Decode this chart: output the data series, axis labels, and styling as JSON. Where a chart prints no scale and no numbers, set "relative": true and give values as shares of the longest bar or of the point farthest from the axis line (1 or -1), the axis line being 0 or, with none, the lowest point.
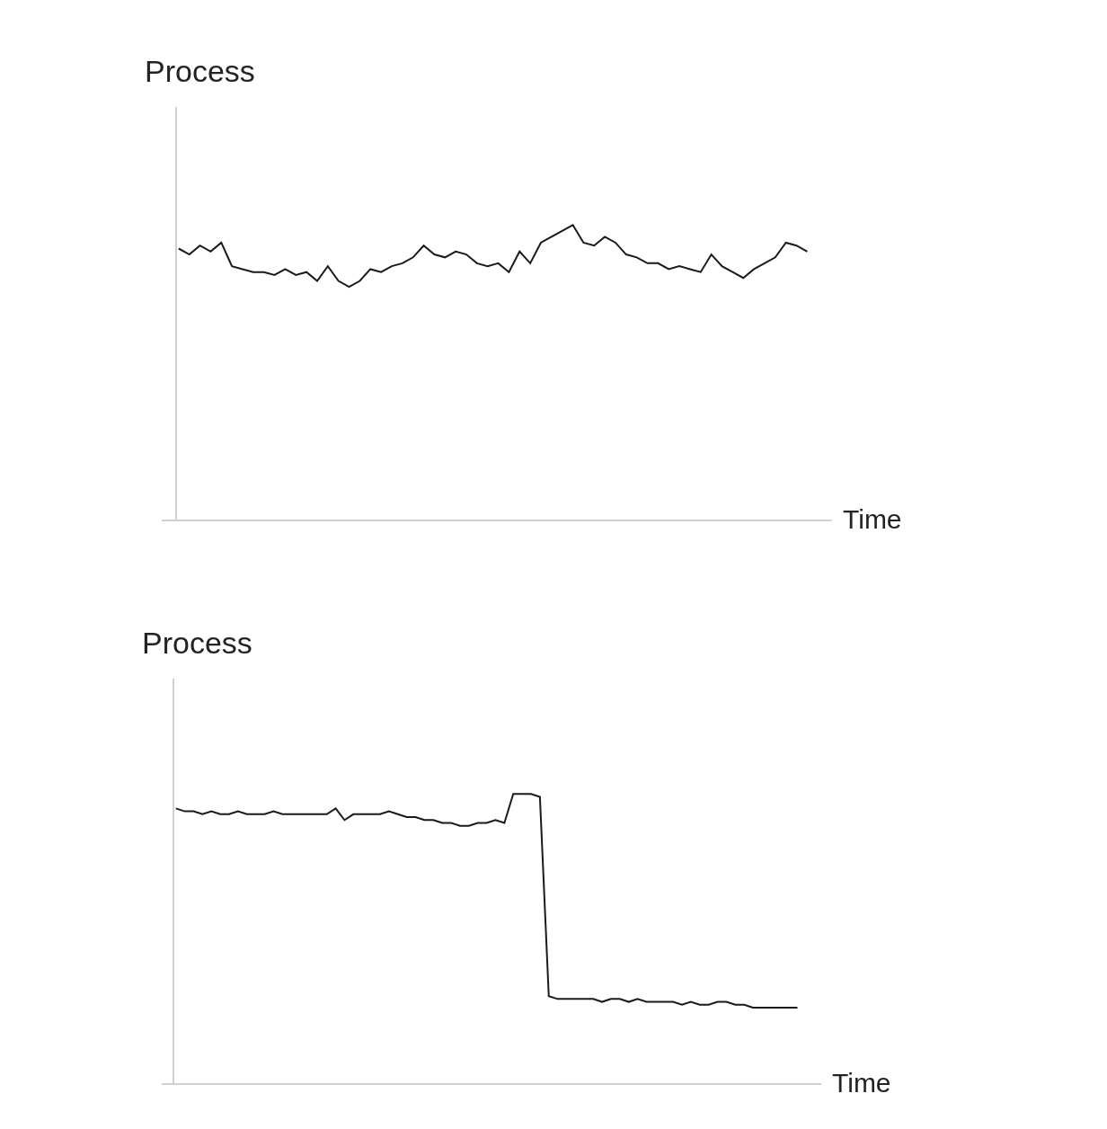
{
  "chart_data": [
    {
      "type": "line",
      "relative": true,
      "ylabel": "Process",
      "xlabel": "Time",
      "color": "#1a1a1a",
      "marker": "none",
      "line_style": "solid",
      "categories": [
        null,
        null,
        null,
        null,
        null,
        null,
        null,
        null,
        null,
        null,
        null,
        null,
        null,
        null,
        null,
        null,
        null,
        null,
        null,
        null,
        null,
        null,
        null,
        null,
        null,
        null,
        null,
        null,
        null,
        null,
        null,
        null,
        null,
        null,
        null,
        null,
        null,
        null,
        null,
        null,
        null,
        null,
        null,
        null,
        null,
        null,
        null,
        null,
        null,
        null,
        null,
        null,
        null,
        null,
        null,
        null,
        null,
        null,
        null,
        null
      ],
      "values": [
        0.92,
        0.9,
        0.93,
        0.91,
        0.94,
        0.86,
        0.85,
        0.84,
        0.84,
        0.83,
        0.85,
        0.83,
        0.84,
        0.81,
        0.86,
        0.81,
        0.79,
        0.81,
        0.85,
        0.84,
        0.86,
        0.87,
        0.89,
        0.93,
        0.9,
        0.89,
        0.91,
        0.9,
        0.87,
        0.86,
        0.87,
        0.84,
        0.91,
        0.87,
        0.94,
        0.96,
        0.98,
        1.0,
        0.94,
        0.93,
        0.96,
        0.94,
        0.9,
        0.89,
        0.87,
        0.87,
        0.85,
        0.86,
        0.85,
        0.84,
        0.9,
        0.86,
        0.84,
        0.82,
        0.85,
        0.87,
        0.89,
        0.94,
        0.93,
        0.91
      ]
    },
    {
      "type": "line",
      "relative": true,
      "ylabel": "Process",
      "xlabel": "Time",
      "color": "#1a1a1a",
      "marker": "none",
      "line_style": "solid",
      "categories": [
        null,
        null,
        null,
        null,
        null,
        null,
        null,
        null,
        null,
        null,
        null,
        null,
        null,
        null,
        null,
        null,
        null,
        null,
        null,
        null,
        null,
        null,
        null,
        null,
        null,
        null,
        null,
        null,
        null,
        null,
        null,
        null,
        null,
        null,
        null,
        null,
        null,
        null,
        null,
        null,
        null,
        null,
        null,
        null,
        null,
        null,
        null,
        null,
        null,
        null,
        null,
        null,
        null,
        null,
        null,
        null,
        null,
        null,
        null,
        null,
        null,
        null,
        null,
        null,
        null,
        null,
        null,
        null,
        null,
        null,
        null
      ],
      "values": [
        0.95,
        0.94,
        0.94,
        0.93,
        0.94,
        0.93,
        0.93,
        0.94,
        0.93,
        0.93,
        0.93,
        0.94,
        0.93,
        0.93,
        0.93,
        0.93,
        0.93,
        0.93,
        0.95,
        0.91,
        0.93,
        0.93,
        0.93,
        0.93,
        0.94,
        0.93,
        0.92,
        0.92,
        0.91,
        0.91,
        0.9,
        0.9,
        0.89,
        0.89,
        0.9,
        0.9,
        0.91,
        0.9,
        1.0,
        1.0,
        1.0,
        0.99,
        0.3,
        0.29,
        0.29,
        0.29,
        0.29,
        0.29,
        0.28,
        0.29,
        0.29,
        0.28,
        0.29,
        0.28,
        0.28,
        0.28,
        0.28,
        0.27,
        0.28,
        0.27,
        0.27,
        0.28,
        0.28,
        0.27,
        0.27,
        0.26,
        0.26,
        0.26,
        0.26,
        0.26,
        0.26
      ]
    }
  ]
}
